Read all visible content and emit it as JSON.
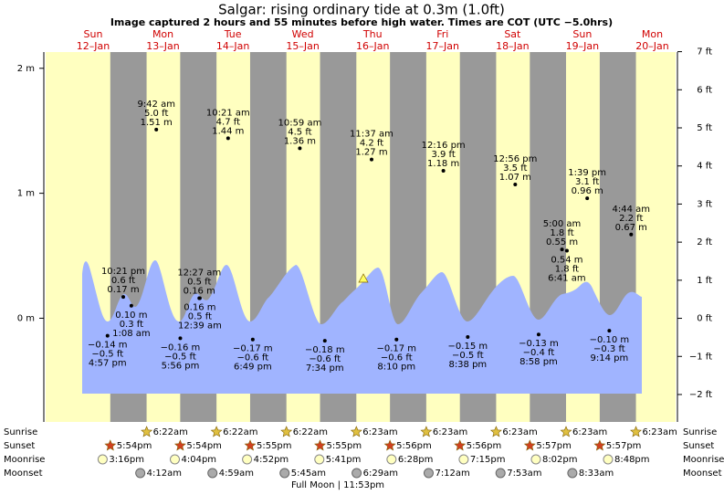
{
  "title": "Salgar: rising  ordinary tide at 0.3m (1.0ft)",
  "subtitle": "Image captured 2 hours and 55 minutes before high water. Times are COT (UTC −5.0hrs)",
  "row_labels": [
    "Sunrise",
    "Sunset",
    "Moonrise",
    "Moonset"
  ],
  "ylim": [
    -0.83,
    2.13
  ],
  "yticks": [
    {
      "value": 0,
      "label": "0 m"
    },
    {
      "value": 1,
      "label": "1 m"
    },
    {
      "value": 2,
      "label": "2 m"
    }
  ],
  "y2lim": [
    -2.72,
    6.99
  ],
  "y2ticks": [
    {
      "value": -2,
      "label": "−2 ft"
    },
    {
      "value": -1,
      "label": "−1 ft"
    },
    {
      "value": 0,
      "label": "0 ft"
    },
    {
      "value": 1,
      "label": "1 ft"
    },
    {
      "value": 2,
      "label": "2 ft"
    },
    {
      "value": 3,
      "label": "3 ft"
    },
    {
      "value": 4,
      "label": "4 ft"
    },
    {
      "value": 5,
      "label": "5 ft"
    },
    {
      "value": 6,
      "label": "6 ft"
    },
    {
      "value": 7,
      "label": "7 ft"
    }
  ],
  "days": [
    {
      "name": "Sun",
      "date": "12–Jan",
      "sunset": "5:54pm",
      "moonrise": "3:16pm",
      "highs": [
        {
          "time": "10:21 pm",
          "ft": "0.6 ft",
          "m": "0.17 m",
          "value": 0.17
        }
      ],
      "lows": [
        {
          "time": "4:57 pm",
          "ft": "−0.5 ft",
          "m": "−0.14 m",
          "value": -0.14
        }
      ]
    },
    {
      "name": "Mon",
      "date": "13–Jan",
      "sunrise": "6:22am",
      "sunset": "5:54pm",
      "moonrise": "4:04pm",
      "moonset": "4:12am",
      "highs": [
        {
          "time": "9:42 am",
          "ft": "5.0 ft",
          "m": "1.51 m",
          "value": 1.51
        }
      ],
      "lows": [
        {
          "time": "1:08 am",
          "ft": "0.3 ft",
          "m": "0.10 m",
          "value": 0.1
        },
        {
          "time": "5:56 pm",
          "ft": "−0.5 ft",
          "m": "−0.16 m",
          "value": -0.16
        }
      ]
    },
    {
      "name": "Tue",
      "date": "14–Jan",
      "sunrise": "6:22am",
      "sunset": "5:55pm",
      "moonrise": "4:52pm",
      "moonset": "4:59am",
      "highs": [
        {
          "time": "12:27 am",
          "ft": "0.5 ft",
          "m": "0.16 m",
          "value": 0.16
        },
        {
          "time": "10:21 am",
          "ft": "4.7 ft",
          "m": "1.44 m",
          "value": 1.44
        }
      ],
      "lows": [
        {
          "time": "12:39 am",
          "ft": "0.5 ft",
          "m": "0.16 m",
          "value": 0.16
        },
        {
          "time": "6:49 pm",
          "ft": "−0.6 ft",
          "m": "−0.17 m",
          "value": -0.17
        }
      ]
    },
    {
      "name": "Wed",
      "date": "15–Jan",
      "sunrise": "6:22am",
      "sunset": "5:55pm",
      "moonrise": "5:41pm",
      "moonset": "5:45am",
      "moon_phase": "Full Moon | 11:53pm",
      "highs": [
        {
          "time": "10:59 am",
          "ft": "4.5 ft",
          "m": "1.36 m",
          "value": 1.36
        }
      ],
      "lows": [
        {
          "time": "7:34 pm",
          "ft": "−0.6 ft",
          "m": "−0.18 m",
          "value": -0.18
        }
      ]
    },
    {
      "name": "Thu",
      "date": "16–Jan",
      "sunrise": "6:23am",
      "sunset": "5:56pm",
      "moonrise": "6:28pm",
      "moonset": "6:29am",
      "highs": [
        {
          "time": "11:37 am",
          "ft": "4.2 ft",
          "m": "1.27 m",
          "value": 1.27
        }
      ],
      "lows": [
        {
          "time": "8:10 pm",
          "ft": "−0.6 ft",
          "m": "−0.17 m",
          "value": -0.17
        }
      ]
    },
    {
      "name": "Fri",
      "date": "17–Jan",
      "sunrise": "6:23am",
      "sunset": "5:56pm",
      "moonrise": "7:15pm",
      "moonset": "7:12am",
      "highs": [
        {
          "time": "12:16 pm",
          "ft": "3.9 ft",
          "m": "1.18 m",
          "value": 1.18
        }
      ],
      "lows": [
        {
          "time": "8:38 pm",
          "ft": "−0.5 ft",
          "m": "−0.15 m",
          "value": -0.15
        }
      ]
    },
    {
      "name": "Sat",
      "date": "18–Jan",
      "sunrise": "6:23am",
      "sunset": "5:57pm",
      "moonrise": "8:02pm",
      "moonset": "7:53am",
      "highs": [
        {
          "time": "12:56 pm",
          "ft": "3.5 ft",
          "m": "1.07 m",
          "value": 1.07
        }
      ],
      "lows": [
        {
          "time": "8:58 pm",
          "ft": "−0.4 ft",
          "m": "−0.13 m",
          "value": -0.13
        }
      ]
    },
    {
      "name": "Sun",
      "date": "19–Jan",
      "sunrise": "6:23am",
      "sunset": "5:57pm",
      "moonrise": "8:48pm",
      "moonset": "8:33am",
      "highs": [
        {
          "time": "5:00 am",
          "ft": "1.8 ft",
          "m": "0.55 m",
          "value": 0.55
        },
        {
          "time": "1:39 pm",
          "ft": "3.1 ft",
          "m": "0.96 m",
          "value": 0.96
        }
      ],
      "lows": [
        {
          "time": "6:41 am",
          "ft": "1.8 ft",
          "m": "0.54 m",
          "value": 0.54
        },
        {
          "time": "9:14 pm",
          "ft": "−0.3 ft",
          "m": "−0.10 m",
          "value": -0.1
        }
      ]
    },
    {
      "name": "Mon",
      "date": "20–Jan",
      "sunrise": "6:23am",
      "highs": [
        {
          "time": "4:44 am",
          "ft": "2.2 ft",
          "m": "0.67 m",
          "value": 0.67
        }
      ],
      "lows": []
    }
  ]
}
